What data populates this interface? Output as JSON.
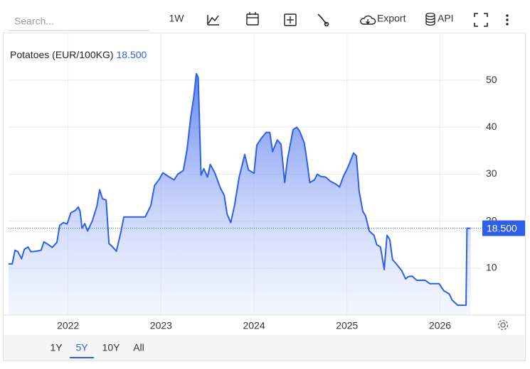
{
  "toolbar": {
    "search_placeholder": "Search...",
    "interval": "1W",
    "export": "Export",
    "api": "API"
  },
  "ranges": [
    "1Y",
    "5Y",
    "10Y",
    "All"
  ],
  "active_range": 1,
  "chart_data": {
    "type": "area",
    "last_label": "18.500",
    "x": [
      2021.36,
      2021.4,
      2021.43,
      2021.46,
      2021.5,
      2021.53,
      2021.57,
      2021.6,
      2021.66,
      2021.71,
      2021.74,
      2021.79,
      2021.83,
      2021.88,
      2021.91,
      2021.95,
      2021.99,
      2022.03,
      2022.08,
      2022.11,
      2022.13,
      2022.15,
      2022.18,
      2022.21,
      2022.26,
      2022.31,
      2022.34,
      2022.37,
      2022.41,
      2022.44,
      2022.47,
      2022.52,
      2022.57,
      2022.6,
      2022.72,
      2022.83,
      2022.89,
      2022.93,
      2022.98,
      2023.02,
      2023.09,
      2023.14,
      2023.18,
      2023.24,
      2023.28,
      2023.32,
      2023.35,
      2023.38,
      2023.4,
      2023.43,
      2023.46,
      2023.5,
      2023.53,
      2023.58,
      2023.64,
      2023.68,
      2023.71,
      2023.75,
      2023.79,
      2023.84,
      2023.9,
      2023.94,
      2024.0,
      2024.03,
      2024.08,
      2024.13,
      2024.17,
      2024.2,
      2024.25,
      2024.29,
      2024.33,
      2024.36,
      2024.42,
      2024.46,
      2024.49,
      2024.54,
      2024.57,
      2024.6,
      2024.65,
      2024.68,
      2024.72,
      2024.77,
      2024.82,
      2024.88,
      2024.92,
      2024.96,
      2025.01,
      2025.07,
      2025.1,
      2025.13,
      2025.17,
      2025.2,
      2025.24,
      2025.29,
      2025.32,
      2025.36,
      2025.4,
      2025.43,
      2025.46,
      2025.49,
      2025.53,
      2025.59,
      2025.63,
      2025.66,
      2025.7,
      2025.75,
      2025.84,
      2025.89,
      2025.99,
      2026.04,
      2026.1,
      2026.13,
      2026.19,
      2026.28,
      2026.29,
      2026.33
    ],
    "series": [
      {
        "name": "Potatoes (EUR/100KG)",
        "color": "#2f5fe8",
        "values": [
          10.9,
          10.9,
          13.8,
          13.5,
          12,
          14,
          14.5,
          13.5,
          13.6,
          13.8,
          15.6,
          15,
          14.4,
          15.5,
          19.1,
          19.7,
          19.4,
          21.8,
          22.3,
          23,
          22.1,
          18.5,
          19.5,
          17.9,
          20,
          23.2,
          26.7,
          24.8,
          24.5,
          15.2,
          14.7,
          13.6,
          17.9,
          20.9,
          20.9,
          20.9,
          23.3,
          27.6,
          28.9,
          30.3,
          29.4,
          28.8,
          30,
          30.8,
          35.3,
          42.3,
          46.1,
          51.4,
          50.6,
          29.8,
          31.2,
          29.4,
          32.1,
          30.2,
          27,
          25.5,
          21.5,
          19.7,
          23.3,
          29.4,
          34.2,
          30.9,
          30.2,
          36.2,
          37.7,
          38.9,
          38.9,
          34.8,
          37.3,
          36.4,
          28.2,
          33.2,
          39.5,
          40,
          39.2,
          36.7,
          32.7,
          28.2,
          28.8,
          30,
          29.5,
          29.4,
          28.5,
          27.9,
          27.3,
          29.5,
          31.5,
          34.5,
          33.9,
          26.4,
          22.1,
          21.1,
          17.9,
          17,
          15,
          14.5,
          9.7,
          17,
          16.1,
          11.8,
          10.9,
          9.4,
          7.7,
          8.2,
          8.3,
          7.4,
          7.4,
          6.7,
          6.7,
          5.2,
          4.5,
          3.2,
          2.1,
          2.1,
          18.5,
          18.5
        ]
      }
    ],
    "xlim": [
      2021.36,
      2026.44
    ],
    "xticks": [
      2022,
      2023,
      2024,
      2025,
      2026
    ],
    "ylim": [
      0,
      60
    ],
    "yticks": [
      10,
      20,
      30,
      40,
      50
    ],
    "grid": true
  }
}
